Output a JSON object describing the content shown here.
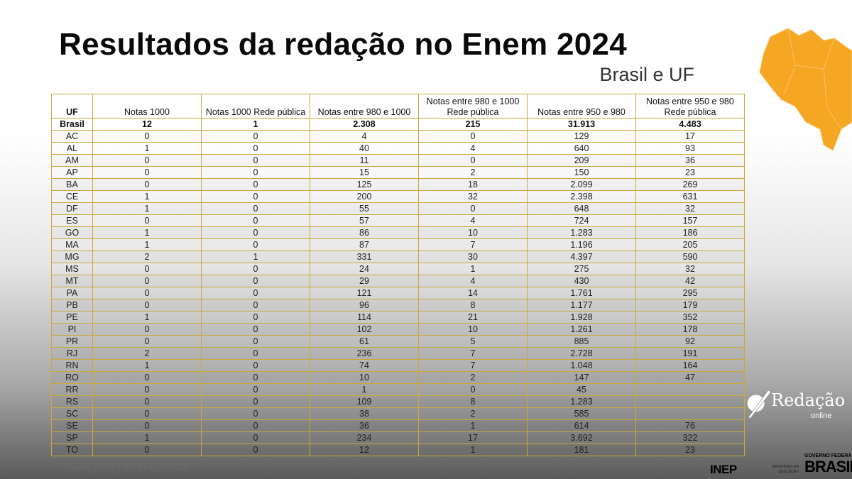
{
  "header": {
    "title": "Resultados da redação no Enem 2024",
    "subtitle": "Brasil e UF"
  },
  "colors": {
    "map": "#f5a623",
    "grid": "#c9a93a"
  },
  "table": {
    "columns": [
      "UF",
      "Notas 1000",
      "Notas 1000 Rede pública",
      "Notas entre 980 e 1000",
      "Notas entre 980 e 1000 Rede pública",
      "Notas entre 950 e 980",
      "Notas entre 950 e 980 Rede pública"
    ],
    "total": [
      "Brasil",
      "12",
      "1",
      "2.308",
      "215",
      "31.913",
      "4.483"
    ],
    "rows": [
      [
        "AC",
        "0",
        "0",
        "4",
        "0",
        "129",
        "17"
      ],
      [
        "AL",
        "1",
        "0",
        "40",
        "4",
        "640",
        "93"
      ],
      [
        "AM",
        "0",
        "0",
        "11",
        "0",
        "209",
        "36"
      ],
      [
        "AP",
        "0",
        "0",
        "15",
        "2",
        "150",
        "23"
      ],
      [
        "BA",
        "0",
        "0",
        "125",
        "18",
        "2.099",
        "269"
      ],
      [
        "CE",
        "1",
        "0",
        "200",
        "32",
        "2.398",
        "631"
      ],
      [
        "DF",
        "1",
        "0",
        "55",
        "0",
        "648",
        "32"
      ],
      [
        "ES",
        "0",
        "0",
        "57",
        "4",
        "724",
        "157"
      ],
      [
        "GO",
        "1",
        "0",
        "86",
        "10",
        "1.283",
        "186"
      ],
      [
        "MA",
        "1",
        "0",
        "87",
        "7",
        "1.196",
        "205"
      ],
      [
        "MG",
        "2",
        "1",
        "331",
        "30",
        "4.397",
        "590"
      ],
      [
        "MS",
        "0",
        "0",
        "24",
        "1",
        "275",
        "32"
      ],
      [
        "MT",
        "0",
        "0",
        "29",
        "4",
        "430",
        "42"
      ],
      [
        "PA",
        "0",
        "0",
        "121",
        "14",
        "1.761",
        "295"
      ],
      [
        "PB",
        "0",
        "0",
        "96",
        "8",
        "1.177",
        "179"
      ],
      [
        "PE",
        "1",
        "0",
        "114",
        "21",
        "1.928",
        "352"
      ],
      [
        "PI",
        "0",
        "0",
        "102",
        "10",
        "1.261",
        "178"
      ],
      [
        "PR",
        "0",
        "0",
        "61",
        "5",
        "885",
        "92"
      ],
      [
        "RJ",
        "2",
        "0",
        "236",
        "7",
        "2.728",
        "191"
      ],
      [
        "RN",
        "1",
        "0",
        "74",
        "7",
        "1.048",
        "164"
      ],
      [
        "RO",
        "0",
        "0",
        "10",
        "2",
        "147",
        "47"
      ],
      [
        "RR",
        "0",
        "0",
        "1",
        "0",
        "45",
        ""
      ],
      [
        "RS",
        "0",
        "0",
        "109",
        "8",
        "1.283",
        ""
      ],
      [
        "SC",
        "0",
        "0",
        "38",
        "2",
        "585",
        ""
      ],
      [
        "SE",
        "0",
        "0",
        "36",
        "1",
        "614",
        "76"
      ],
      [
        "SP",
        "1",
        "0",
        "234",
        "17",
        "3.692",
        "322"
      ],
      [
        "TO",
        "0",
        "0",
        "12",
        "1",
        "181",
        "23"
      ]
    ]
  },
  "footer": {
    "text": "Enem 2024 | RESULTADOS"
  },
  "logos": {
    "redacao": "Redação",
    "redacao_sub": "online",
    "inep": "INEP",
    "ministerio": "MINISTÉRIO DA EDUCAÇÃO",
    "gov_top": "GOVERNO FEDERAL",
    "gov": "BRASIL"
  }
}
